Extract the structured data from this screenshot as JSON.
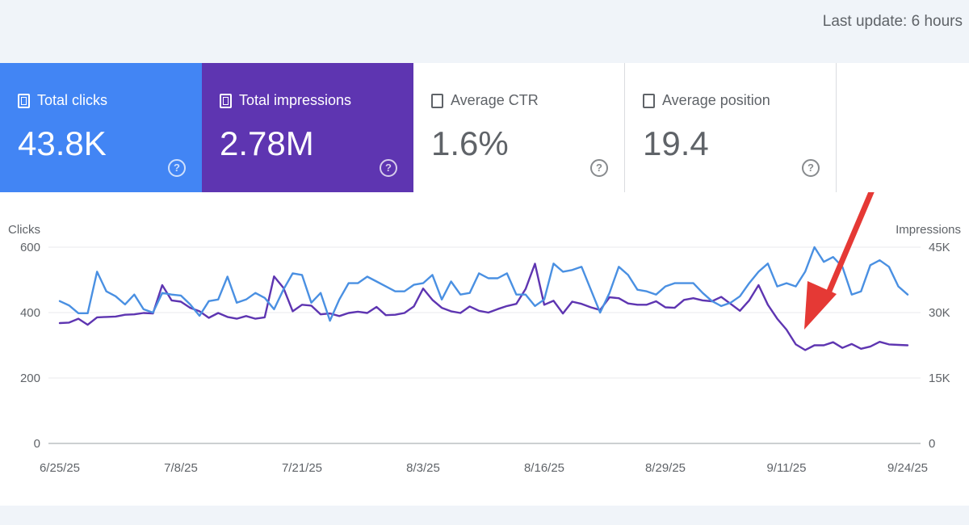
{
  "header": {
    "last_update": "Last update: 6 hours"
  },
  "cards": [
    {
      "label": "Total clicks",
      "value": "43.8K",
      "checked": true,
      "help": "?"
    },
    {
      "label": "Total impressions",
      "value": "2.78M",
      "checked": true,
      "help": "?"
    },
    {
      "label": "Average CTR",
      "value": "1.6%",
      "checked": false,
      "help": "?"
    },
    {
      "label": "Average position",
      "value": "19.4",
      "checked": false,
      "help": "?"
    }
  ],
  "colors": {
    "clicks": "#4a90e2",
    "impressions": "#5e35b1",
    "arrow": "#e53935"
  },
  "chart_data": {
    "type": "line",
    "ylabel_left": "Clicks",
    "ylabel_right": "Impressions",
    "y_left_ticks": [
      "0",
      "200",
      "400",
      "600"
    ],
    "y_left_range": [
      0,
      600
    ],
    "y_right_ticks": [
      "0",
      "15K",
      "30K",
      "45K"
    ],
    "y_right_range": [
      0,
      45000
    ],
    "x_tick_labels": [
      "6/25/25",
      "7/8/25",
      "7/21/25",
      "8/3/25",
      "8/16/25",
      "8/29/25",
      "9/11/25",
      "9/24/25"
    ],
    "grid": true,
    "series": [
      {
        "name": "Clicks",
        "axis": "left",
        "values": [
          435,
          422,
          398,
          398,
          525,
          465,
          450,
          425,
          455,
          410,
          400,
          460,
          455,
          452,
          425,
          390,
          435,
          440,
          510,
          430,
          440,
          460,
          445,
          410,
          470,
          520,
          515,
          430,
          460,
          375,
          440,
          490,
          490,
          510,
          495,
          480,
          465,
          465,
          485,
          490,
          515,
          440,
          495,
          455,
          460,
          520,
          505,
          505,
          520,
          455,
          455,
          420,
          440,
          550,
          525,
          530,
          540,
          470,
          400,
          460,
          540,
          515,
          470,
          465,
          455,
          480,
          490,
          490,
          490,
          460,
          435,
          420,
          430,
          450,
          490,
          525,
          550,
          480,
          490,
          480,
          525,
          600,
          555,
          570,
          540,
          455,
          465,
          545,
          560,
          540,
          480,
          455
        ],
        "comment": "estimated from plot"
      },
      {
        "name": "Impressions",
        "axis": "right",
        "values": [
          27600,
          27700,
          28600,
          27200,
          28900,
          29000,
          29100,
          29500,
          29600,
          29900,
          29800,
          36300,
          32800,
          32500,
          31100,
          30300,
          28800,
          29900,
          29000,
          28600,
          29200,
          28600,
          28900,
          38300,
          35700,
          30300,
          31800,
          31600,
          29600,
          29800,
          29200,
          29900,
          30200,
          29900,
          31300,
          29400,
          29500,
          29900,
          31400,
          35500,
          32900,
          31100,
          30300,
          29900,
          31400,
          30400,
          30000,
          30800,
          31500,
          32000,
          35400,
          41200,
          31800,
          32700,
          29800,
          32500,
          32000,
          31200,
          30600,
          33500,
          33300,
          32100,
          31800,
          31800,
          32600,
          31200,
          31100,
          32900,
          33300,
          32800,
          32600,
          33600,
          32000,
          30400,
          32800,
          36300,
          31800,
          28600,
          26100,
          22700,
          21400,
          22500,
          22500,
          23200,
          21900,
          22800,
          21700,
          22200,
          23300,
          22700,
          22600,
          22500
        ],
        "comment": "estimated from plot"
      }
    ]
  }
}
